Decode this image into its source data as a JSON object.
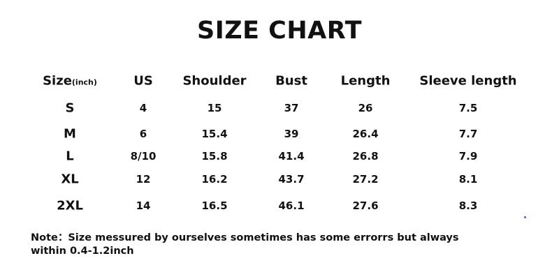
{
  "title": "SIZE CHART",
  "table": {
    "headers": [
      "Size",
      "US",
      "Shoulder",
      "Bust",
      "Length",
      "Sleeve length"
    ],
    "size_unit": "(inch)",
    "rows": [
      [
        "S",
        "4",
        "15",
        "37",
        "26",
        "7.5"
      ],
      [
        "M",
        "6",
        "15.4",
        "39",
        "26.4",
        "7.7"
      ],
      [
        "L",
        "8/10",
        "15.8",
        "41.4",
        "26.8",
        "7.9"
      ],
      [
        "XL",
        "12",
        "16.2",
        "43.7",
        "27.2",
        "8.1"
      ],
      [
        "2XL",
        "14",
        "16.5",
        "46.1",
        "27.6",
        "8.3"
      ]
    ]
  },
  "note": {
    "line1": "Note：Size messured by ourselves sometimes has some errorrs but always",
    "line2": "within 0.4-1.2inch"
  }
}
